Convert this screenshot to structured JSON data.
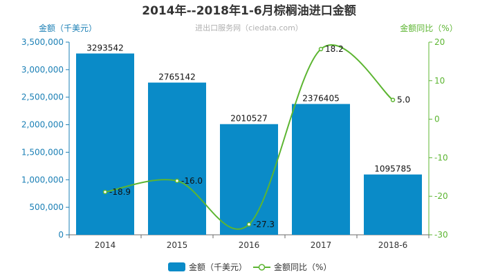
{
  "chart_data": {
    "title": "2014年--2018年1-6月棕榈油进口金额",
    "subtitle": "进出口服务网（ciedata.com）",
    "categories": [
      "2014",
      "2015",
      "2016",
      "2017",
      "2018-6"
    ],
    "y_left": {
      "label": "金额（千美元）",
      "min": 0,
      "max": 3500000,
      "ticks": [
        0,
        500000,
        1000000,
        1500000,
        2000000,
        2500000,
        3000000,
        3500000
      ],
      "tick_labels": [
        "0",
        "500,000",
        "1,000,000",
        "1,500,000",
        "2,000,000",
        "2,500,000",
        "3,000,000",
        "3,500,000"
      ]
    },
    "y_right": {
      "label": "金额同比（%）",
      "min": -30,
      "max": 20,
      "ticks": [
        -30,
        -20,
        -10,
        0,
        10,
        20
      ],
      "tick_labels": [
        "-30",
        "-20",
        "-10",
        "0",
        "10",
        "20"
      ]
    },
    "series": [
      {
        "name": "金额（千美元）",
        "type": "bar",
        "axis": "left",
        "color": "#0a8bc8",
        "values": [
          3293542,
          2765142,
          2010527,
          2376405,
          1095785
        ],
        "labels": [
          "3293542",
          "2765142",
          "2010527",
          "2376405",
          "1095785"
        ]
      },
      {
        "name": "金额同比（%）",
        "type": "line",
        "axis": "right",
        "color": "#5cb531",
        "values": [
          -18.9,
          -16.0,
          -27.3,
          18.2,
          5.0
        ],
        "labels": [
          "-18.9",
          "-16.0",
          "-27.3",
          "18.2",
          "5.0"
        ]
      }
    ],
    "legend": {
      "position": "bottom"
    },
    "colors": {
      "left_axis": "#1a7fb5",
      "right_axis": "#5cb531",
      "title": "#333333"
    }
  }
}
